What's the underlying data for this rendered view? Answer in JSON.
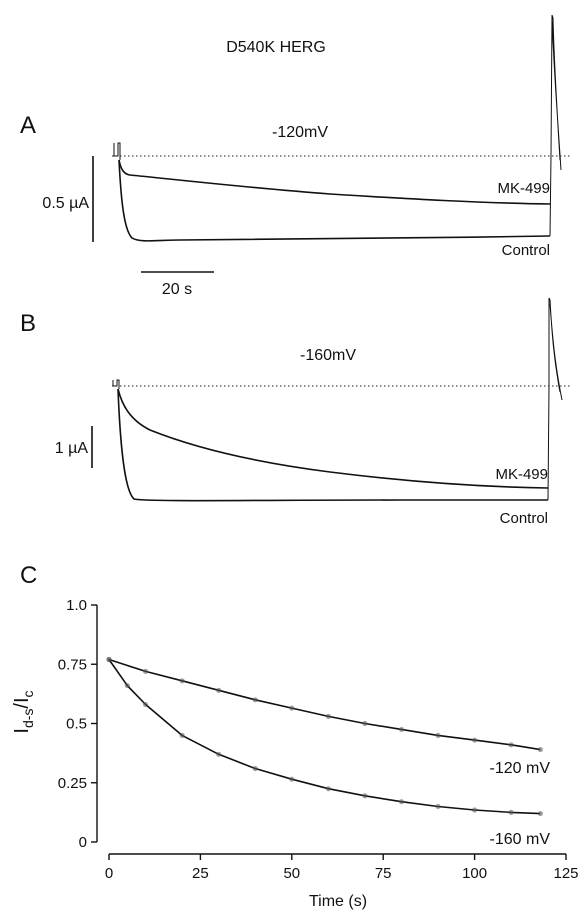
{
  "figure_title": "D540K HERG",
  "panel_a": {
    "letter": "A",
    "voltage_label": "-120mV",
    "current_scalebar_label": "0.5 µA",
    "time_scalebar_label": "20 s",
    "trace_labels": [
      "MK-499",
      "Control"
    ]
  },
  "panel_b": {
    "letter": "B",
    "voltage_label": "-160mV",
    "current_scalebar_label": "1 µA",
    "trace_labels": [
      "MK-499",
      "Control"
    ]
  },
  "panel_c": {
    "letter": "C",
    "curve_labels": [
      "-120 mV",
      "-160 mV"
    ]
  },
  "chart_data": {
    "type": "scatter",
    "title": "",
    "xlabel": "Time (s)",
    "ylabel": "Id-s/Ic",
    "ylabel_main": "I",
    "ylabel_sub1": "d-s",
    "ylabel_sep": "/I",
    "ylabel_sub2": "c",
    "xlim": [
      0,
      125
    ],
    "ylim": [
      0,
      1.0
    ],
    "x_ticks": [
      0,
      25,
      50,
      75,
      100,
      125
    ],
    "x_tick_labels": [
      "0",
      "25",
      "50",
      "75",
      "100",
      "125"
    ],
    "y_ticks": [
      0,
      0.25,
      0.5,
      0.75,
      1.0
    ],
    "y_tick_labels": [
      "0",
      "0.25",
      "0.5",
      "0.75",
      "1.0"
    ],
    "grid": false,
    "series": [
      {
        "name": "-120 mV",
        "x": [
          0,
          10,
          20,
          30,
          40,
          50,
          60,
          70,
          80,
          90,
          100,
          110,
          118
        ],
        "y": [
          0.77,
          0.72,
          0.68,
          0.64,
          0.6,
          0.565,
          0.53,
          0.5,
          0.475,
          0.45,
          0.43,
          0.41,
          0.39
        ]
      },
      {
        "name": "-160 mV",
        "x": [
          0,
          5,
          10,
          20,
          30,
          40,
          50,
          60,
          70,
          80,
          90,
          100,
          110,
          118
        ],
        "y": [
          0.77,
          0.66,
          0.58,
          0.45,
          0.37,
          0.31,
          0.265,
          0.225,
          0.195,
          0.17,
          0.15,
          0.135,
          0.125,
          0.12
        ]
      }
    ]
  }
}
